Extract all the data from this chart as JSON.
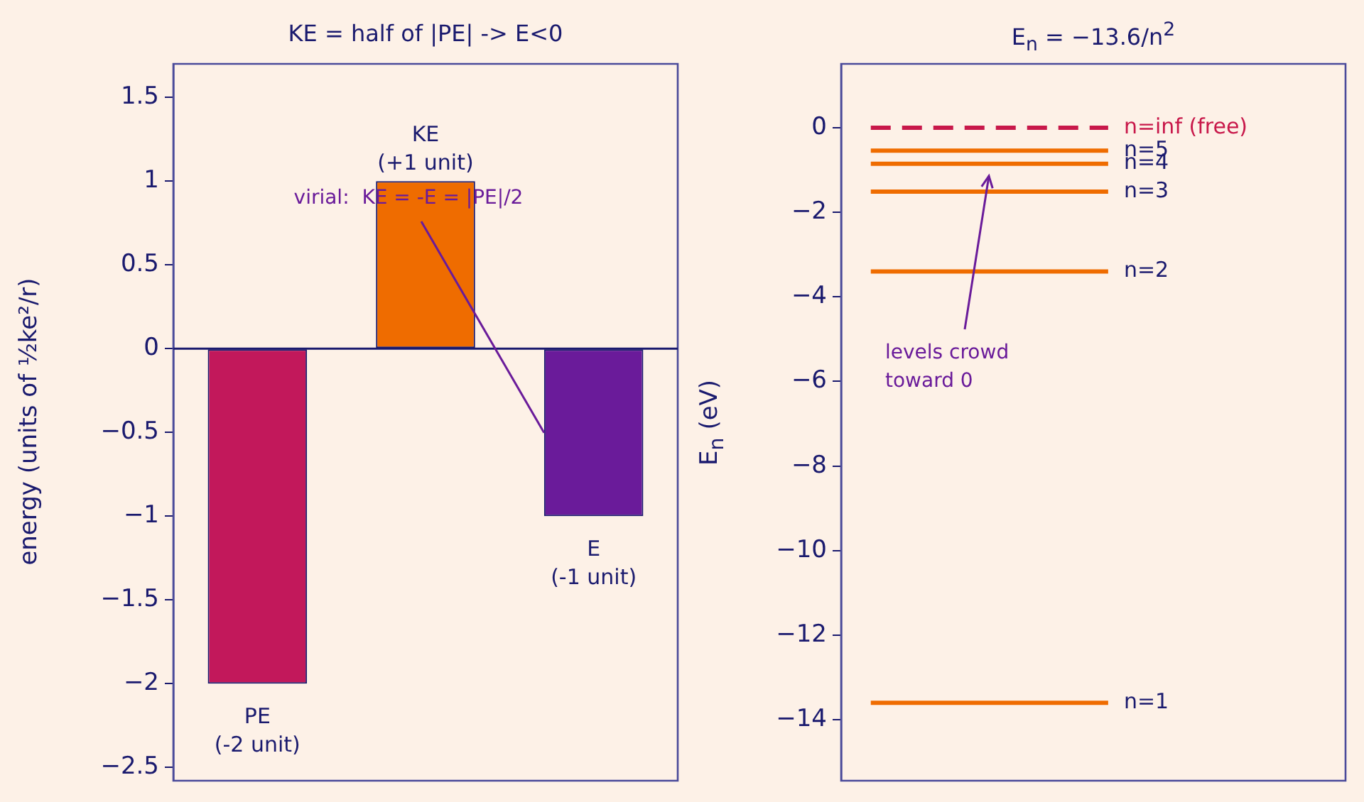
{
  "chart_data": [
    {
      "type": "bar",
      "title": "KE = half of |PE|  ->  E<0",
      "ylabel": "energy (units of ½ke²/r)",
      "categories": [
        null,
        null,
        null
      ],
      "values": [
        -2,
        1,
        -1
      ],
      "colors": [
        "#c2185b",
        "#ef6c00",
        "#6a1b9a"
      ],
      "value_labels": [
        "PE\n(-2 unit)",
        "KE\n(+1 unit)",
        "E\n(-1 unit)"
      ],
      "ylim": [
        -2.58,
        1.7
      ],
      "yticks": [
        -2.5,
        -2,
        -1.5,
        -1,
        -0.5,
        0,
        0.5,
        1,
        1.5
      ],
      "ref_lines": [
        {
          "axis": "y",
          "value": 0,
          "color": "#1a1a6e"
        }
      ],
      "annotations": [
        "virial:  KE = -E = |PE|/2"
      ],
      "tick_labels": "y",
      "grid": false,
      "legend": false
    },
    {
      "type": "line",
      "title": "E$_{n}$ = −13.6/n$^{2}$",
      "ylabel": "E$_{n}$ (eV)",
      "categories": [
        null,
        null,
        null,
        null,
        null,
        null,
        null,
        null,
        null,
        null,
        null,
        null,
        null,
        null,
        null,
        null,
        null,
        null
      ],
      "ylim": [
        -15.44,
        1.51
      ],
      "yticks": [
        -14,
        -12,
        -10,
        -8,
        -6,
        -4,
        -2,
        0
      ],
      "series": [
        {
          "name": "n=1",
          "color": "#ef6c00",
          "values": [
            null,
            -13.6,
            -13.6,
            -13.6,
            -13.6,
            -13.6,
            -13.6,
            -13.6,
            -13.6,
            -13.6,
            null,
            null,
            null,
            null,
            null,
            null,
            null,
            null
          ]
        },
        {
          "name": "n=2",
          "color": "#ef6c00",
          "values": [
            null,
            -3.4,
            -3.4,
            -3.4,
            -3.4,
            -3.4,
            -3.4,
            -3.4,
            -3.4,
            -3.4,
            null,
            null,
            null,
            null,
            null,
            null,
            null,
            null
          ]
        },
        {
          "name": "n=3",
          "color": "#ef6c00",
          "values": [
            null,
            -1.51,
            -1.51,
            -1.51,
            -1.51,
            -1.51,
            -1.51,
            -1.51,
            -1.51,
            -1.51,
            null,
            null,
            null,
            null,
            null,
            null,
            null,
            null
          ]
        },
        {
          "name": "n=4",
          "color": "#ef6c00",
          "values": [
            null,
            -0.85,
            -0.85,
            -0.85,
            -0.85,
            -0.85,
            -0.85,
            -0.85,
            -0.85,
            -0.85,
            null,
            null,
            null,
            null,
            null,
            null,
            null,
            null
          ]
        },
        {
          "name": "n=5",
          "color": "#ef6c00",
          "values": [
            null,
            -0.54,
            -0.54,
            -0.54,
            -0.54,
            -0.54,
            -0.54,
            -0.54,
            -0.54,
            -0.54,
            null,
            null,
            null,
            null,
            null,
            null,
            null,
            null
          ]
        },
        {
          "name": "n=inf (free)",
          "color": "#c8184a",
          "values": [
            null,
            0,
            0,
            0,
            0,
            0,
            0,
            0,
            0,
            0,
            null,
            null,
            null,
            null,
            null,
            null,
            null,
            null
          ],
          "line_style": "dashed"
        }
      ],
      "annotations": [
        "levels crowd\ntoward 0"
      ],
      "marker": "none",
      "tick_labels": "y",
      "grid": false,
      "legend": false
    }
  ]
}
